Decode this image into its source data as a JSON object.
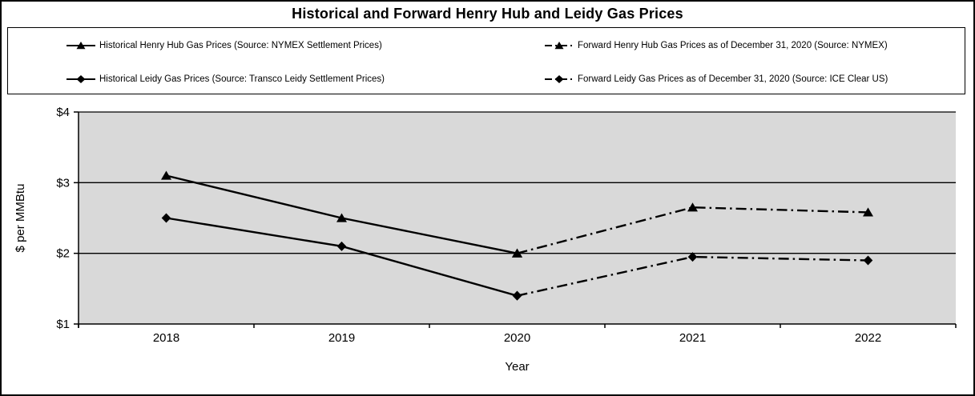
{
  "colors": {
    "background": "#FFFFFF",
    "border": "#000000",
    "plot_bg": "#D9D9D9",
    "line": "#000000",
    "grid": "#000000"
  },
  "chart_data": {
    "type": "line",
    "title": "Historical and Forward Henry Hub and Leidy Gas Prices",
    "xlabel": "Year",
    "ylabel": "$ per MMBtu",
    "categories": [
      "2018",
      "2019",
      "2020",
      "2021",
      "2022"
    ],
    "ylim": [
      1,
      4
    ],
    "yticks": [
      {
        "value": 4,
        "label": "$4"
      },
      {
        "value": 3,
        "label": "$3"
      },
      {
        "value": 2,
        "label": "$2"
      },
      {
        "value": 1,
        "label": "$1"
      }
    ],
    "grid": "horizontal",
    "legend_position": "top",
    "series": [
      {
        "name": "Historical Henry Hub Gas Prices (Source: NYMEX Settlement Prices)",
        "marker": "triangle",
        "line_style": "solid",
        "values": [
          3.1,
          2.5,
          2.0,
          null,
          null
        ]
      },
      {
        "name": "Forward Henry Hub Gas Prices as of December 31, 2020 (Source: NYMEX)",
        "marker": "triangle",
        "line_style": "dashdot",
        "values": [
          null,
          null,
          2.0,
          2.65,
          2.58
        ]
      },
      {
        "name": "Historical Leidy Gas Prices (Source: Transco Leidy Settlement Prices)",
        "marker": "diamond",
        "line_style": "solid",
        "values": [
          2.5,
          2.1,
          1.4,
          null,
          null
        ]
      },
      {
        "name": "Forward Leidy Gas Prices as of December 31, 2020 (Source: ICE Clear US)",
        "marker": "diamond",
        "line_style": "dashdot",
        "values": [
          null,
          null,
          1.4,
          1.95,
          1.9
        ]
      }
    ]
  }
}
